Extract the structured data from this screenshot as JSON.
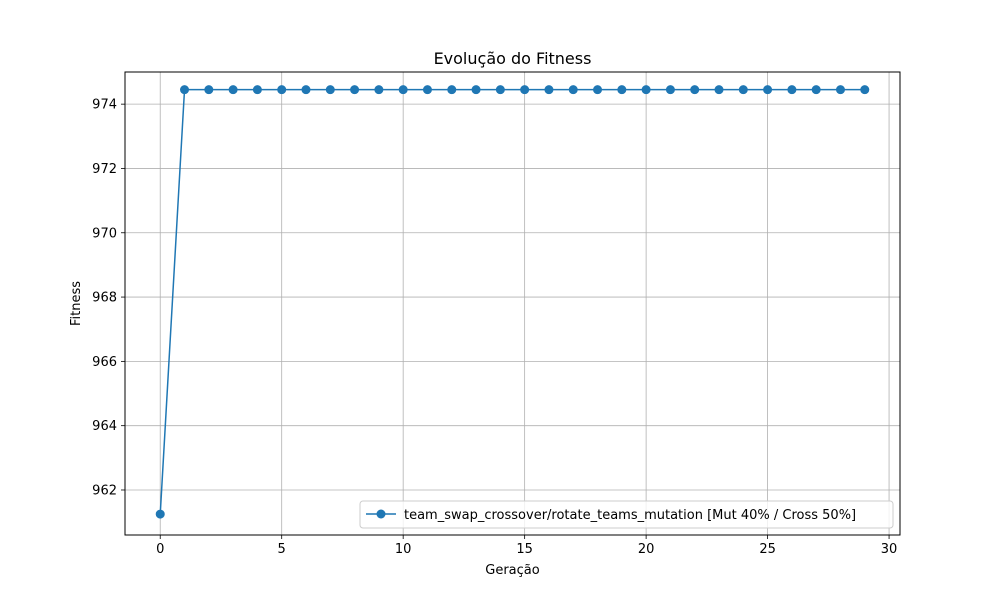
{
  "chart_data": {
    "type": "line",
    "title": "Evolução do Fitness",
    "xlabel": "Geração",
    "ylabel": "Fitness",
    "xlim": [
      -1.45,
      30.45
    ],
    "ylim": [
      960.6,
      975.0
    ],
    "xticks": [
      0,
      5,
      10,
      15,
      20,
      25,
      30
    ],
    "yticks": [
      962,
      964,
      966,
      968,
      970,
      972,
      974
    ],
    "grid": true,
    "legend_position": "lower-right",
    "series": [
      {
        "name": "team_swap_crossover/rotate_teams_mutation [Mut 40% / Cross 50%]",
        "color": "#1f77b4",
        "marker": "circle",
        "x": [
          0,
          1,
          2,
          3,
          4,
          5,
          6,
          7,
          8,
          9,
          10,
          11,
          12,
          13,
          14,
          15,
          16,
          17,
          18,
          19,
          20,
          21,
          22,
          23,
          24,
          25,
          26,
          27,
          28,
          29
        ],
        "y": [
          961.25,
          974.45,
          974.45,
          974.45,
          974.45,
          974.45,
          974.45,
          974.45,
          974.45,
          974.45,
          974.45,
          974.45,
          974.45,
          974.45,
          974.45,
          974.45,
          974.45,
          974.45,
          974.45,
          974.45,
          974.45,
          974.45,
          974.45,
          974.45,
          974.45,
          974.45,
          974.45,
          974.45,
          974.45,
          974.45
        ]
      }
    ]
  }
}
